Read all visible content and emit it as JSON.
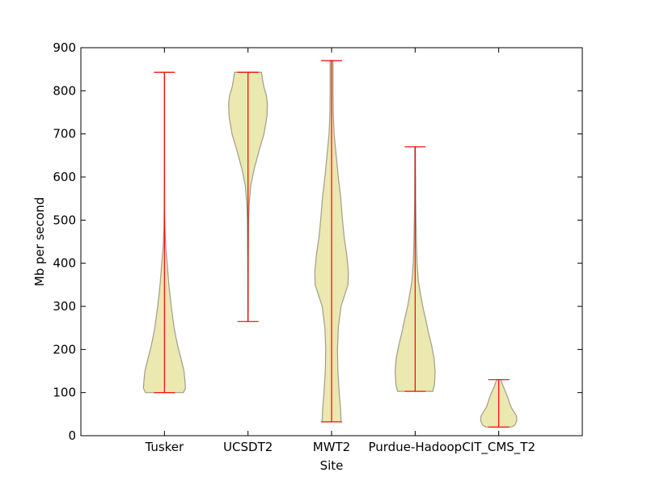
{
  "chart_data": {
    "type": "violin",
    "title": "",
    "xlabel": "Site",
    "ylabel": "Mb per second",
    "ylim": [
      0,
      900
    ],
    "yticks": [
      0,
      100,
      200,
      300,
      400,
      500,
      600,
      700,
      800,
      900
    ],
    "grid": false,
    "colors": {
      "body_fill": "#ebe8b0",
      "body_edge": "#9e9e8a",
      "whisker": "#ff0000",
      "frame": "#000000"
    },
    "categories": [
      "Tusker",
      "UCSDT2",
      "MWT2",
      "Purdue-Hadoop",
      "CIT_CMS_T2"
    ],
    "series": [
      {
        "category": "Tusker",
        "min": 100,
        "max": 843,
        "profile": [
          [
            100,
            0.9
          ],
          [
            110,
            1.0
          ],
          [
            130,
            0.97
          ],
          [
            150,
            0.93
          ],
          [
            180,
            0.78
          ],
          [
            210,
            0.62
          ],
          [
            250,
            0.46
          ],
          [
            300,
            0.32
          ],
          [
            350,
            0.21
          ],
          [
            400,
            0.13
          ],
          [
            440,
            0.06
          ],
          [
            480,
            0.025
          ],
          [
            520,
            0.012
          ],
          [
            600,
            0.008
          ],
          [
            700,
            0.006
          ],
          [
            800,
            0.005
          ],
          [
            843,
            0.005
          ]
        ]
      },
      {
        "category": "UCSDT2",
        "min": 265,
        "max": 843,
        "profile": [
          [
            265,
            0.01
          ],
          [
            300,
            0.012
          ],
          [
            400,
            0.015
          ],
          [
            500,
            0.03
          ],
          [
            540,
            0.06
          ],
          [
            580,
            0.13
          ],
          [
            620,
            0.3
          ],
          [
            660,
            0.52
          ],
          [
            700,
            0.76
          ],
          [
            740,
            0.9
          ],
          [
            770,
            0.92
          ],
          [
            790,
            0.87
          ],
          [
            810,
            0.75
          ],
          [
            830,
            0.68
          ],
          [
            843,
            0.64
          ]
        ]
      },
      {
        "category": "MWT2",
        "min": 32,
        "max": 870,
        "profile": [
          [
            32,
            0.45
          ],
          [
            60,
            0.43
          ],
          [
            100,
            0.36
          ],
          [
            150,
            0.3
          ],
          [
            200,
            0.28
          ],
          [
            250,
            0.32
          ],
          [
            300,
            0.45
          ],
          [
            350,
            0.78
          ],
          [
            380,
            0.8
          ],
          [
            420,
            0.72
          ],
          [
            460,
            0.6
          ],
          [
            500,
            0.52
          ],
          [
            550,
            0.44
          ],
          [
            600,
            0.32
          ],
          [
            650,
            0.22
          ],
          [
            700,
            0.12
          ],
          [
            750,
            0.08
          ],
          [
            800,
            0.07
          ],
          [
            850,
            0.07
          ],
          [
            870,
            0.07
          ]
        ]
      },
      {
        "category": "Purdue-Hadoop",
        "min": 103,
        "max": 670,
        "profile": [
          [
            103,
            0.84
          ],
          [
            120,
            0.92
          ],
          [
            150,
            0.95
          ],
          [
            180,
            0.9
          ],
          [
            210,
            0.78
          ],
          [
            240,
            0.63
          ],
          [
            270,
            0.5
          ],
          [
            300,
            0.36
          ],
          [
            330,
            0.25
          ],
          [
            360,
            0.15
          ],
          [
            400,
            0.09
          ],
          [
            450,
            0.06
          ],
          [
            500,
            0.04
          ],
          [
            550,
            0.025
          ],
          [
            600,
            0.02
          ],
          [
            640,
            0.015
          ],
          [
            670,
            0.015
          ]
        ]
      },
      {
        "category": "CIT_CMS_T2",
        "min": 20,
        "max": 130,
        "profile": [
          [
            20,
            0.62
          ],
          [
            25,
            0.77
          ],
          [
            35,
            0.86
          ],
          [
            45,
            0.85
          ],
          [
            55,
            0.73
          ],
          [
            65,
            0.6
          ],
          [
            75,
            0.52
          ],
          [
            85,
            0.46
          ],
          [
            100,
            0.34
          ],
          [
            110,
            0.25
          ],
          [
            120,
            0.17
          ],
          [
            130,
            0.1
          ]
        ]
      }
    ]
  }
}
